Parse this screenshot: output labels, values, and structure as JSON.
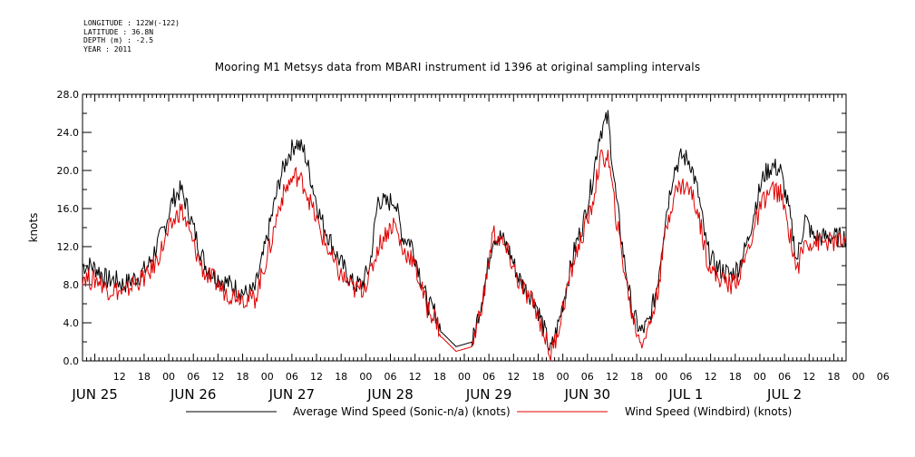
{
  "header": {
    "longitude": "LONGITUDE : 122W(-122)",
    "latitude": "LATITUDE : 36.8N",
    "depth": "DEPTH (m) : -2.5",
    "year": "YEAR : 2011"
  },
  "title": "Mooring M1 Metsys data from MBARI instrument id 1396 at original sampling intervals",
  "chart_data": {
    "type": "line",
    "ylabel": "knots",
    "ylim": [
      0,
      28
    ],
    "y_ticks": [
      "0.0",
      "4.0",
      "8.0",
      "12.0",
      "16.0",
      "20.0",
      "24.0",
      "28.0"
    ],
    "xlim_hours": [
      3,
      189
    ],
    "hour_tick_labels": [
      "12",
      "18",
      "00",
      "06",
      "12",
      "18",
      "00",
      "06",
      "12",
      "18",
      "00",
      "06",
      "12",
      "18",
      "00",
      "06",
      "12",
      "18",
      "00",
      "06",
      "12",
      "18",
      "00",
      "06",
      "12",
      "18",
      "00",
      "06",
      "12",
      "18",
      "00",
      "06"
    ],
    "day_labels": [
      "JUN 25",
      "JUN 26",
      "JUN 27",
      "JUN 28",
      "JUN 29",
      "JUN 30",
      "JUL  1",
      "JUL  2"
    ],
    "grid": false,
    "legend_position": "bottom",
    "series": [
      {
        "name": "Average Wind Speed (Sonic-n/a) (knots)",
        "color": "#000000",
        "x": [
          3,
          5,
          7,
          9,
          11,
          13,
          15,
          17,
          19,
          21,
          23,
          25,
          27,
          29,
          31,
          33,
          35,
          37,
          39,
          41,
          43,
          45,
          47,
          49,
          51,
          53,
          55,
          57,
          59,
          61,
          63,
          65,
          67,
          69,
          71,
          73,
          75,
          77,
          79,
          81,
          83,
          85,
          87,
          89,
          90.5,
          94,
          98,
          101,
          103,
          105,
          107,
          109,
          111,
          113,
          115,
          117,
          119,
          121,
          123,
          125,
          127,
          129,
          131,
          133,
          135,
          137,
          139,
          141,
          143,
          145,
          147,
          149,
          151,
          153,
          155,
          157,
          159,
          161,
          163,
          165,
          167,
          169,
          171,
          173,
          175,
          177,
          179,
          181,
          183,
          185,
          187,
          189
        ],
        "y": [
          10.0,
          10.0,
          9.5,
          8.5,
          8.5,
          8.0,
          8.5,
          9.0,
          10.0,
          12.0,
          14.0,
          17.0,
          18.0,
          15.5,
          12.5,
          10.0,
          9.0,
          8.5,
          8.0,
          7.5,
          7.0,
          7.5,
          11.0,
          15.0,
          19.0,
          21.5,
          23.0,
          22.0,
          18.5,
          15.0,
          13.0,
          11.0,
          9.5,
          8.0,
          8.0,
          10.0,
          17.0,
          16.5,
          17.0,
          13.0,
          12.5,
          9.5,
          6.0,
          5.0,
          3.0,
          1.5,
          2.0,
          8.0,
          13.0,
          13.0,
          11.5,
          9.0,
          7.5,
          6.5,
          4.0,
          1.0,
          4.0,
          8.0,
          12.0,
          14.5,
          18.5,
          24.0,
          25.5,
          17.0,
          10.5,
          5.0,
          3.0,
          4.0,
          8.0,
          15.0,
          20.0,
          21.5,
          21.0,
          17.5,
          12.0,
          10.0,
          9.5,
          9.0,
          10.0,
          12.5,
          16.5,
          19.5,
          20.5,
          20.0,
          16.0,
          10.5,
          15.0,
          13.0,
          13,
          13,
          13,
          13
        ]
      },
      {
        "name": "Wind Speed (Windbird) (knots)",
        "color": "#e00000",
        "x": [
          3,
          5,
          7,
          9,
          11,
          13,
          15,
          17,
          19,
          21,
          23,
          25,
          27,
          29,
          31,
          33,
          35,
          37,
          39,
          41,
          43,
          45,
          47,
          49,
          51,
          53,
          55,
          57,
          59,
          61,
          63,
          65,
          67,
          69,
          71,
          73,
          75,
          77,
          79,
          81,
          83,
          85,
          87,
          89,
          90.5,
          94,
          98,
          101,
          103,
          105,
          107,
          109,
          111,
          113,
          115,
          117,
          119,
          121,
          123,
          125,
          127,
          129,
          131,
          133,
          135,
          137,
          139,
          141,
          143,
          145,
          147,
          149,
          151,
          153,
          155,
          157,
          159,
          161,
          163,
          165,
          167,
          169,
          171,
          173,
          175,
          177,
          179,
          181,
          183,
          185,
          187,
          189
        ],
        "y": [
          9.0,
          8.5,
          8.5,
          7.5,
          7.5,
          7.0,
          8.0,
          8.5,
          9.0,
          10.5,
          12.5,
          14.5,
          16.0,
          13.5,
          11.0,
          9.0,
          8.5,
          7.5,
          7.0,
          7.0,
          6.5,
          6.5,
          9.5,
          12.5,
          16.5,
          18.5,
          19.5,
          18.5,
          16.0,
          13.5,
          11.5,
          9.5,
          8.5,
          7.5,
          7.5,
          9.0,
          12.0,
          13.5,
          14.5,
          11.5,
          11.0,
          8.5,
          5.5,
          4.5,
          2.5,
          1.0,
          1.5,
          7.5,
          13.5,
          12.5,
          11.0,
          8.5,
          7.0,
          6.0,
          3.5,
          0.5,
          3.5,
          7.5,
          11.0,
          13.5,
          16.0,
          21.0,
          21.5,
          15.0,
          9.5,
          4.5,
          2.0,
          3.5,
          7.0,
          13.5,
          17.5,
          18.5,
          18.0,
          15.5,
          11.0,
          9.0,
          8.5,
          8.0,
          9.0,
          11.5,
          14.5,
          17.0,
          18.0,
          17.5,
          14.0,
          9.5,
          12.5,
          12.5,
          12.5,
          12.5,
          12.5,
          12.5
        ]
      }
    ]
  }
}
